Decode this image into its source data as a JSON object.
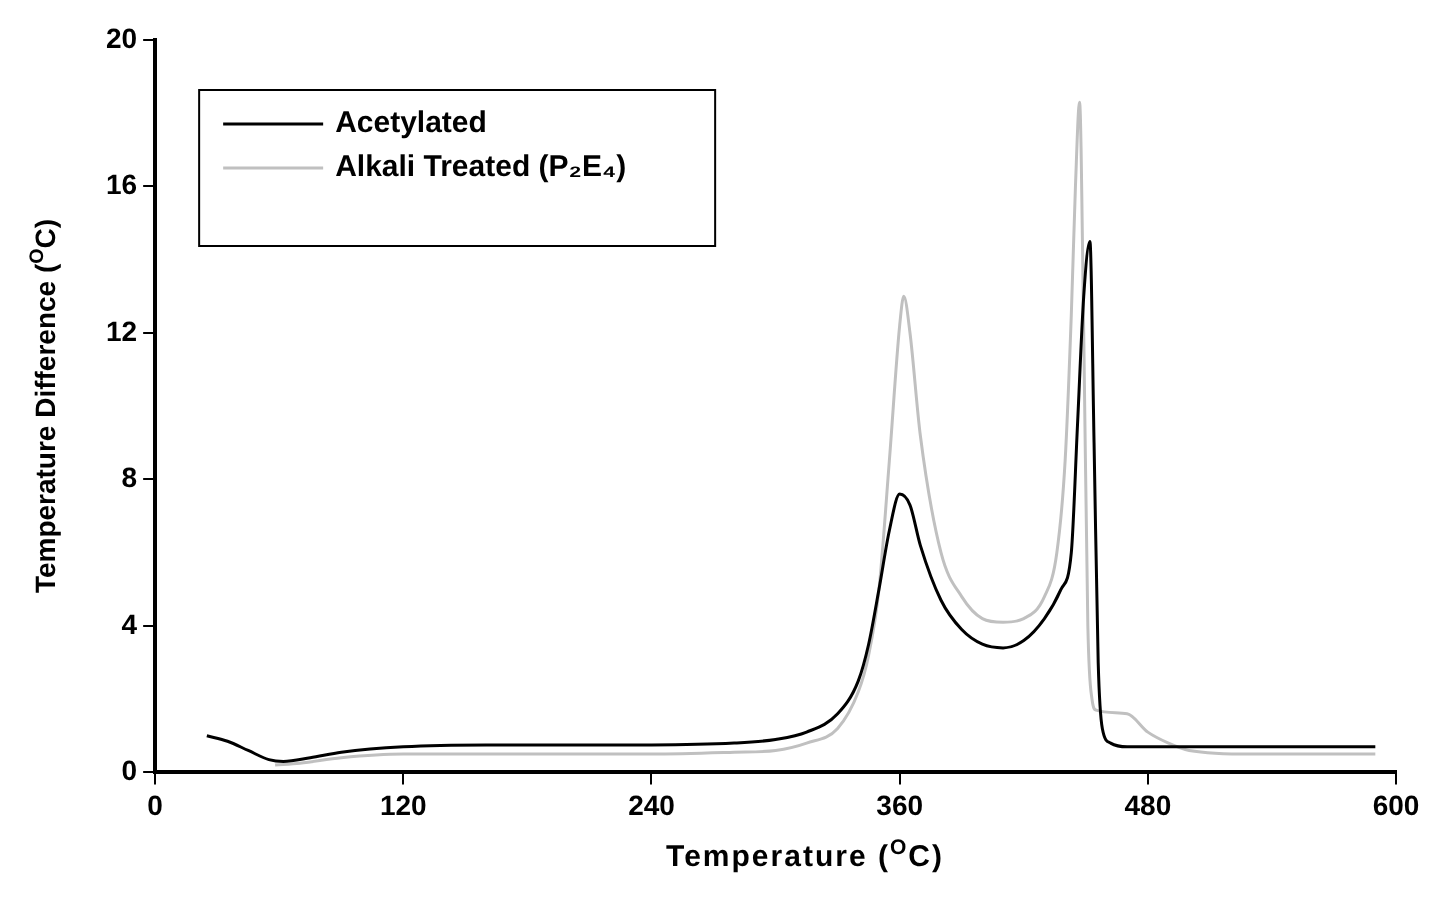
{
  "chart_data": {
    "type": "line",
    "xlabel": "Temperature ($^{O}$C)",
    "ylabel": "Temperature Difference ($^{O}$C)",
    "xlim": [
      0,
      600
    ],
    "xticks": [
      0,
      120,
      240,
      360,
      480,
      600
    ],
    "ylim": [
      0,
      20
    ],
    "yticks": [
      0,
      4,
      8,
      12,
      16,
      20
    ],
    "grid": false,
    "legend": "top left",
    "marker": "none",
    "line_style": "solid",
    "series": [
      {
        "name": "Acetylated",
        "color": "#000000",
        "x": [
          25,
          35,
          45,
          55,
          62,
          75,
          90,
          120,
          160,
          200,
          240,
          280,
          300,
          315,
          330,
          340,
          345,
          350,
          355,
          360,
          365,
          370,
          380,
          390,
          400,
          410,
          420,
          430,
          438,
          443,
          446,
          449,
          452,
          454,
          456,
          458,
          462,
          470,
          500,
          550,
          590
        ],
        "values": [
          1.0,
          0.85,
          0.6,
          0.35,
          0.3,
          0.4,
          0.55,
          0.7,
          0.75,
          0.75,
          0.75,
          0.8,
          0.9,
          1.1,
          1.6,
          2.5,
          3.5,
          5.0,
          6.6,
          7.6,
          7.3,
          6.2,
          4.7,
          3.9,
          3.5,
          3.4,
          3.6,
          4.2,
          5.0,
          6.0,
          9.5,
          13.0,
          14.5,
          9.0,
          3.0,
          1.2,
          0.8,
          0.7,
          0.7,
          0.7,
          0.7
        ]
      },
      {
        "name": "Alkali Treated (P₂E₄)",
        "color": "#c0c0c0",
        "x": [
          58,
          70,
          90,
          120,
          160,
          200,
          240,
          280,
          300,
          315,
          330,
          340,
          345,
          350,
          355,
          360,
          362,
          365,
          370,
          380,
          390,
          400,
          410,
          420,
          430,
          436,
          440,
          443,
          445,
          447,
          449,
          451,
          453,
          455,
          470,
          480,
          490,
          500,
          530,
          590
        ],
        "values": [
          0.2,
          0.25,
          0.4,
          0.5,
          0.5,
          0.5,
          0.5,
          0.55,
          0.6,
          0.8,
          1.2,
          2.2,
          3.2,
          5.0,
          8.5,
          12.2,
          13.0,
          12.0,
          9.2,
          6.0,
          4.8,
          4.2,
          4.1,
          4.2,
          4.8,
          6.0,
          8.5,
          12.5,
          16.0,
          18.3,
          12.0,
          4.0,
          2.0,
          1.7,
          1.6,
          1.1,
          0.8,
          0.6,
          0.5,
          0.5
        ]
      }
    ]
  }
}
